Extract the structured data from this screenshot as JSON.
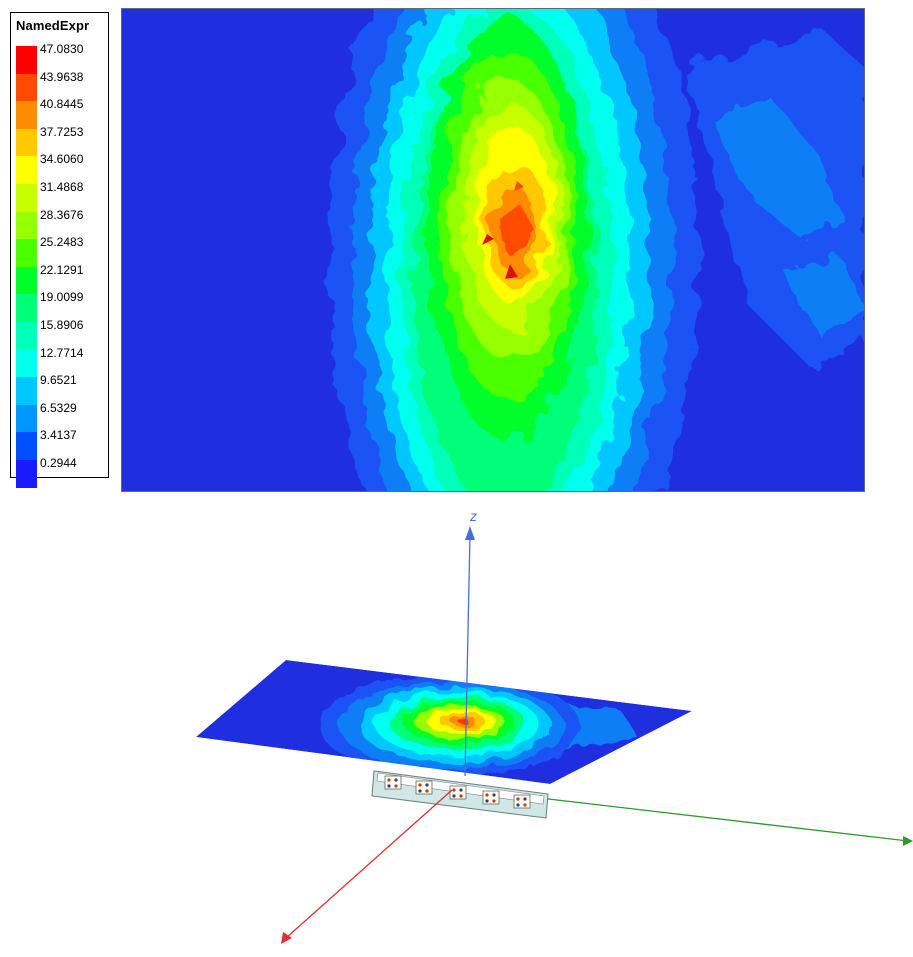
{
  "legend": {
    "title": "NamedExpr",
    "values": [
      "47.0830",
      "43.9638",
      "40.8445",
      "37.7253",
      "34.6060",
      "31.4868",
      "28.3676",
      "25.2483",
      "22.1291",
      "19.0099",
      "15.8906",
      "12.7714",
      "9.6521",
      "6.5329",
      "3.4137",
      "0.2944"
    ],
    "colors": [
      "#ff0000",
      "#ff4a00",
      "#ff8c00",
      "#ffc800",
      "#ffff00",
      "#c8ff00",
      "#96ff00",
      "#4aff00",
      "#00ff2a",
      "#00ff78",
      "#00ffb8",
      "#00ffee",
      "#00c8ff",
      "#0096ff",
      "#0050ff",
      "#1a1aff"
    ]
  },
  "plot": {
    "colormap_name": "rainbow",
    "peak_value": 47.083,
    "min_value": 0.2944
  },
  "scene": {
    "z_axis_label": "z",
    "x_axis_color": "#e03030",
    "y_axis_color": "#2a9a2a",
    "z_axis_color": "#4a6ed8"
  }
}
